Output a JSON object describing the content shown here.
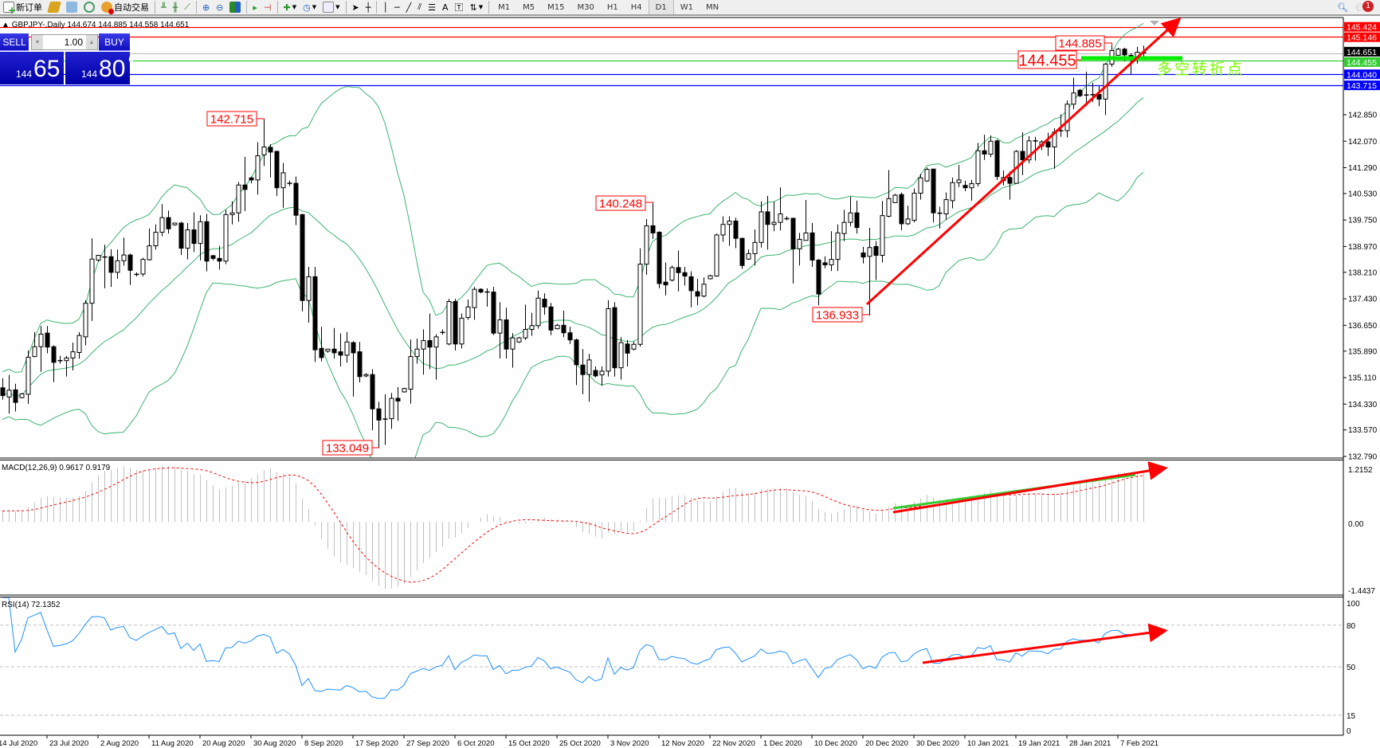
{
  "toolbar": {
    "new_order": "新订单",
    "auto_trading": "自动交易",
    "timeframes": [
      "M1",
      "M5",
      "M15",
      "M30",
      "H1",
      "H4",
      "D1",
      "W1",
      "MN"
    ],
    "active_timeframe": "D1",
    "notification_count": "1"
  },
  "chart": {
    "header": "GBPJPY-,Daily  144.674 144.885 144.558 144.651",
    "price_axis": [
      "142.850",
      "142.070",
      "141.290",
      "140.530",
      "139.750",
      "138.970",
      "138.210",
      "137.430",
      "136.650",
      "135.890",
      "135.110",
      "134.330",
      "133.570",
      "132.790"
    ],
    "level_lines": [
      {
        "value": "145.424",
        "color": "#ff0000",
        "text": "#ffffff"
      },
      {
        "value": "145.146",
        "color": "#ff0000",
        "text": "#ffffff"
      },
      {
        "value": "144.651",
        "color": "#000000",
        "text": "#ffffff",
        "line": "#c0c0c0"
      },
      {
        "value": "144.455",
        "color": "#32cd32",
        "text": "#ffffff"
      },
      {
        "value": "144.040",
        "color": "#0000ff",
        "text": "#ffffff"
      },
      {
        "value": "143.715",
        "color": "#0000ff",
        "text": "#ffffff"
      }
    ],
    "price_labels": {
      "high1": "142.715",
      "low1": "133.049",
      "high2": "140.248",
      "low2": "136.933",
      "high3": "144.885",
      "pivot": "144.455"
    },
    "annotation_text": "多空转折点",
    "colors": {
      "band": "#3cb371",
      "annotation": "#ff0000",
      "pivot_line": "#00ee00",
      "annotation_text": "#7cfc00"
    },
    "dates": [
      "14 Jul 2020",
      "23 Jul 2020",
      "2 Aug 2020",
      "11 Aug 2020",
      "20 Aug 2020",
      "30 Aug 2020",
      "8 Sep 2020",
      "17 Sep 2020",
      "27 Sep 2020",
      "6 Oct 2020",
      "15 Oct 2020",
      "25 Oct 2020",
      "3 Nov 2020",
      "12 Nov 2020",
      "22 Nov 2020",
      "1 Dec 2020",
      "10 Dec 2020",
      "20 Dec 2020",
      "30 Dec 2020",
      "10 Jan 2021",
      "19 Jan 2021",
      "28 Jan 2021",
      "7 Feb 2021"
    ]
  },
  "one_click": {
    "sell": "SELL",
    "buy": "BUY",
    "volume": "1.00",
    "sell_price": {
      "big_figure": "144",
      "pips": "65",
      "fraction": "1"
    },
    "buy_price": {
      "big_figure": "144",
      "pips": "80",
      "fraction": "6"
    }
  },
  "macd": {
    "label": "MACD(12,26,9) 0.9617 0.9179",
    "axis": [
      "1.2152",
      "0.00",
      "-1.4437"
    ]
  },
  "rsi": {
    "label": "RSI(14) 72.1352",
    "axis": [
      "100",
      "80",
      "50",
      "15",
      "0"
    ],
    "color": "#1e90ff"
  },
  "chart_data": {
    "type": "candlestick",
    "symbol": "GBPJPY",
    "timeframe": "Daily",
    "ylim": [
      132.79,
      145.6
    ],
    "indicators": [
      "Bollinger Bands(20,2)",
      "MACD(12,26,9)",
      "RSI(14)"
    ],
    "ohlc": [
      [
        134.81,
        135.09,
        134.46,
        134.58
      ],
      [
        134.54,
        135.19,
        134.05,
        134.74
      ],
      [
        134.75,
        134.93,
        134.11,
        134.38
      ],
      [
        134.52,
        134.66,
        134.5,
        134.63
      ],
      [
        134.62,
        135.91,
        134.34,
        135.71
      ],
      [
        135.73,
        136.45,
        135.71,
        136.02
      ],
      [
        136.02,
        136.63,
        135.28,
        136.39
      ],
      [
        136.42,
        136.63,
        135.83,
        136.01
      ],
      [
        136.02,
        136.06,
        134.98,
        135.56
      ],
      [
        135.61,
        135.75,
        135.52,
        135.61
      ],
      [
        135.61,
        135.75,
        135.14,
        135.69
      ],
      [
        135.69,
        136.14,
        135.32,
        135.87
      ],
      [
        135.85,
        136.45,
        135.67,
        136.35
      ],
      [
        136.31,
        137.39,
        136.06,
        137.3
      ],
      [
        137.3,
        139.21,
        136.78,
        138.6
      ],
      [
        138.57,
        138.72,
        138.53,
        138.71
      ],
      [
        138.66,
        139.02,
        137.74,
        138.66
      ],
      [
        138.67,
        138.89,
        137.78,
        138.21
      ],
      [
        138.21,
        138.88,
        138.02,
        138.55
      ],
      [
        138.55,
        139.23,
        138.41,
        138.72
      ],
      [
        138.72,
        138.76,
        137.84,
        138.27
      ],
      [
        138.15,
        138.21,
        138.09,
        138.15
      ],
      [
        138.16,
        138.64,
        138.09,
        138.59
      ],
      [
        138.58,
        139.5,
        138.56,
        138.99
      ],
      [
        138.99,
        139.62,
        138.88,
        139.39
      ],
      [
        139.39,
        140.22,
        139.27,
        139.82
      ],
      [
        139.82,
        140.03,
        139.35,
        139.49
      ],
      [
        139.61,
        139.67,
        139.58,
        139.66
      ],
      [
        139.66,
        139.7,
        138.72,
        138.92
      ],
      [
        138.92,
        139.66,
        138.59,
        139.46
      ],
      [
        139.46,
        139.97,
        138.81,
        139.06
      ],
      [
        139.06,
        139.89,
        138.56,
        139.7
      ],
      [
        139.7,
        139.93,
        138.24,
        138.54
      ],
      [
        138.7,
        138.72,
        138.56,
        138.62
      ],
      [
        138.62,
        138.99,
        138.29,
        138.54
      ],
      [
        138.54,
        140.05,
        138.45,
        139.91
      ],
      [
        139.91,
        140.3,
        139.62,
        139.96
      ],
      [
        139.96,
        140.87,
        139.7,
        140.78
      ],
      [
        140.78,
        141.61,
        140.01,
        140.65
      ],
      [
        140.99,
        141.03,
        140.83,
        140.93
      ],
      [
        140.93,
        142.04,
        140.5,
        141.64
      ],
      [
        141.67,
        142.715,
        141.34,
        141.9
      ],
      [
        141.89,
        141.98,
        141.0,
        141.75
      ],
      [
        141.77,
        141.79,
        140.46,
        140.7
      ],
      [
        140.7,
        141.43,
        140.11,
        141.14
      ],
      [
        140.83,
        140.91,
        140.75,
        140.83
      ],
      [
        140.83,
        141.03,
        139.6,
        139.89
      ],
      [
        139.91,
        139.93,
        137.06,
        137.38
      ],
      [
        137.38,
        138.37,
        136.73,
        138.08
      ],
      [
        138.08,
        138.37,
        135.57,
        135.93
      ],
      [
        135.97,
        136.61,
        135.59,
        135.7
      ],
      [
        135.89,
        135.95,
        135.84,
        135.95
      ],
      [
        135.95,
        136.57,
        135.67,
        135.84
      ],
      [
        135.87,
        136.41,
        135.44,
        135.77
      ],
      [
        135.77,
        136.45,
        135.55,
        136.16
      ],
      [
        136.14,
        136.18,
        134.55,
        135.84
      ],
      [
        135.87,
        136.16,
        134.97,
        135.14
      ],
      [
        135.16,
        135.24,
        135.12,
        135.2
      ],
      [
        135.2,
        135.36,
        133.56,
        134.19
      ],
      [
        134.19,
        134.4,
        133.049,
        133.86
      ],
      [
        133.89,
        134.62,
        133.13,
        133.89
      ],
      [
        133.9,
        134.66,
        133.6,
        134.5
      ],
      [
        134.5,
        134.83,
        133.84,
        134.42
      ],
      [
        134.69,
        134.81,
        134.67,
        134.79
      ],
      [
        134.77,
        136.23,
        134.34,
        135.73
      ],
      [
        135.73,
        136.26,
        135.52,
        135.95
      ],
      [
        135.95,
        136.53,
        135.2,
        136.2
      ],
      [
        136.2,
        137.0,
        135.36,
        136.01
      ],
      [
        136.01,
        136.39,
        135.05,
        136.31
      ],
      [
        136.44,
        136.53,
        136.37,
        136.44
      ],
      [
        136.1,
        137.43,
        136.06,
        137.35
      ],
      [
        137.35,
        137.43,
        135.91,
        136.1
      ],
      [
        136.1,
        137.0,
        135.97,
        136.86
      ],
      [
        136.88,
        137.41,
        136.81,
        137.19
      ],
      [
        137.17,
        137.78,
        136.81,
        137.71
      ],
      [
        137.71,
        137.74,
        137.59,
        137.63
      ],
      [
        137.63,
        137.74,
        137.2,
        137.63
      ],
      [
        137.63,
        137.78,
        136.36,
        136.42
      ],
      [
        136.42,
        137.33,
        135.67,
        136.81
      ],
      [
        136.81,
        137.17,
        135.67,
        135.95
      ],
      [
        135.95,
        136.42,
        135.4,
        136.28
      ],
      [
        136.16,
        136.31,
        136.13,
        136.28
      ],
      [
        136.28,
        137.26,
        136.22,
        136.53
      ],
      [
        136.53,
        137.02,
        136.34,
        136.64
      ],
      [
        136.64,
        137.67,
        136.55,
        137.45
      ],
      [
        137.42,
        137.59,
        136.96,
        137.19
      ],
      [
        137.19,
        137.31,
        136.36,
        136.51
      ],
      [
        136.55,
        136.69,
        136.53,
        136.65
      ],
      [
        136.65,
        137.08,
        136.3,
        136.43
      ],
      [
        136.43,
        136.61,
        136.1,
        136.22
      ],
      [
        136.22,
        136.26,
        134.89,
        135.49
      ],
      [
        135.48,
        135.95,
        134.62,
        135.2
      ],
      [
        135.2,
        135.81,
        134.4,
        135.63
      ],
      [
        135.32,
        135.44,
        135.12,
        135.16
      ],
      [
        135.19,
        135.44,
        134.87,
        135.3
      ],
      [
        135.3,
        137.39,
        135.14,
        137.14
      ],
      [
        137.17,
        137.33,
        135.14,
        135.4
      ],
      [
        135.4,
        136.3,
        135.05,
        136.14
      ],
      [
        136.1,
        136.22,
        135.44,
        135.83
      ],
      [
        135.95,
        136.17,
        135.91,
        136.09
      ],
      [
        136.09,
        138.92,
        136.02,
        138.45
      ],
      [
        138.45,
        139.78,
        138.14,
        139.58
      ],
      [
        139.58,
        140.248,
        139.19,
        139.37
      ],
      [
        139.39,
        139.42,
        137.74,
        137.88
      ],
      [
        137.92,
        138.5,
        137.53,
        137.84
      ],
      [
        137.98,
        138.41,
        137.94,
        138.35
      ],
      [
        138.35,
        138.85,
        137.65,
        138.2
      ],
      [
        138.2,
        138.37,
        137.82,
        138.1
      ],
      [
        138.08,
        138.24,
        137.18,
        137.67
      ],
      [
        137.64,
        138.02,
        137.24,
        137.51
      ],
      [
        137.51,
        138.06,
        137.47,
        137.86
      ],
      [
        138.02,
        138.14,
        138.0,
        138.11
      ],
      [
        138.1,
        139.35,
        138.08,
        139.31
      ],
      [
        139.31,
        139.86,
        139.11,
        139.62
      ],
      [
        139.62,
        139.86,
        138.99,
        139.72
      ],
      [
        139.72,
        139.82,
        138.92,
        139.21
      ],
      [
        139.21,
        139.23,
        138.31,
        138.41
      ],
      [
        138.6,
        138.88,
        138.58,
        138.76
      ],
      [
        138.76,
        139.47,
        138.41,
        139.09
      ],
      [
        139.09,
        140.3,
        138.94,
        139.99
      ],
      [
        139.99,
        140.46,
        138.88,
        139.62
      ],
      [
        139.62,
        140.29,
        139.42,
        139.68
      ],
      [
        139.68,
        140.71,
        139.44,
        139.93
      ],
      [
        139.79,
        139.86,
        139.74,
        139.79
      ],
      [
        139.8,
        139.82,
        137.88,
        138.9
      ],
      [
        138.9,
        139.37,
        138.41,
        139.18
      ],
      [
        139.15,
        140.34,
        139.15,
        139.37
      ],
      [
        139.37,
        139.66,
        138.37,
        138.57
      ],
      [
        138.57,
        138.6,
        137.24,
        137.57
      ],
      [
        138.49,
        138.68,
        138.33,
        138.43
      ],
      [
        138.43,
        139.42,
        138.25,
        138.59
      ],
      [
        138.59,
        139.62,
        138.25,
        139.37
      ],
      [
        139.35,
        140.05,
        139.13,
        139.68
      ],
      [
        139.68,
        140.44,
        139.57,
        139.96
      ],
      [
        139.96,
        140.32,
        139.35,
        139.53
      ],
      [
        138.78,
        138.96,
        138.47,
        138.66
      ],
      [
        138.68,
        139.52,
        136.933,
        138.94
      ],
      [
        138.97,
        139.13,
        137.98,
        138.71
      ],
      [
        138.71,
        140.31,
        138.5,
        139.88
      ],
      [
        139.86,
        141.22,
        139.83,
        140.38
      ],
      [
        140.26,
        140.52,
        140.25,
        140.48
      ],
      [
        140.5,
        140.56,
        139.45,
        139.64
      ],
      [
        139.64,
        140.17,
        139.6,
        139.78
      ],
      [
        139.74,
        140.68,
        139.68,
        140.54
      ],
      [
        140.54,
        141.11,
        140.35,
        140.99
      ],
      [
        140.9,
        141.3,
        140.87,
        141.24
      ],
      [
        141.25,
        141.26,
        139.68,
        139.96
      ],
      [
        139.95,
        140.14,
        139.5,
        139.95
      ],
      [
        139.93,
        140.56,
        139.75,
        140.35
      ],
      [
        140.32,
        141.0,
        140.09,
        140.85
      ],
      [
        140.85,
        141.37,
        140.72,
        140.93
      ],
      [
        140.77,
        140.91,
        140.6,
        140.7
      ],
      [
        140.7,
        140.93,
        140.32,
        140.82
      ],
      [
        140.82,
        142.02,
        140.74,
        141.79
      ],
      [
        141.79,
        142.26,
        141.52,
        141.69
      ],
      [
        141.69,
        142.24,
        141.6,
        142.07
      ],
      [
        142.08,
        142.12,
        140.93,
        141.03
      ],
      [
        140.91,
        141.21,
        140.77,
        141.0
      ],
      [
        141.0,
        141.18,
        140.35,
        140.83
      ],
      [
        140.83,
        141.81,
        140.82,
        141.77
      ],
      [
        141.77,
        142.33,
        141.07,
        141.52
      ],
      [
        141.52,
        142.22,
        141.42,
        142.08
      ],
      [
        142.08,
        142.2,
        141.5,
        142.08
      ],
      [
        141.93,
        142.1,
        141.81,
        142.05
      ],
      [
        142.05,
        142.32,
        141.64,
        141.9
      ],
      [
        141.9,
        142.45,
        141.26,
        142.34
      ],
      [
        142.38,
        142.86,
        142.2,
        142.36
      ],
      [
        142.38,
        143.27,
        142.18,
        143.16
      ],
      [
        143.16,
        143.94,
        143.01,
        143.49
      ],
      [
        143.57,
        143.61,
        143.37,
        143.41
      ],
      [
        143.43,
        144.12,
        143.1,
        143.43
      ],
      [
        143.44,
        143.79,
        143.22,
        143.44
      ],
      [
        143.45,
        143.69,
        143.1,
        143.31
      ],
      [
        143.31,
        144.37,
        142.84,
        144.34
      ],
      [
        144.34,
        144.885,
        144.26,
        144.74
      ],
      [
        144.6,
        144.82,
        144.59,
        144.78
      ],
      [
        144.78,
        144.82,
        144.43,
        144.61
      ],
      [
        144.59,
        144.66,
        144.04,
        144.59
      ],
      [
        144.55,
        144.85,
        144.35,
        144.69
      ],
      [
        144.674,
        144.885,
        144.558,
        144.651
      ]
    ]
  }
}
